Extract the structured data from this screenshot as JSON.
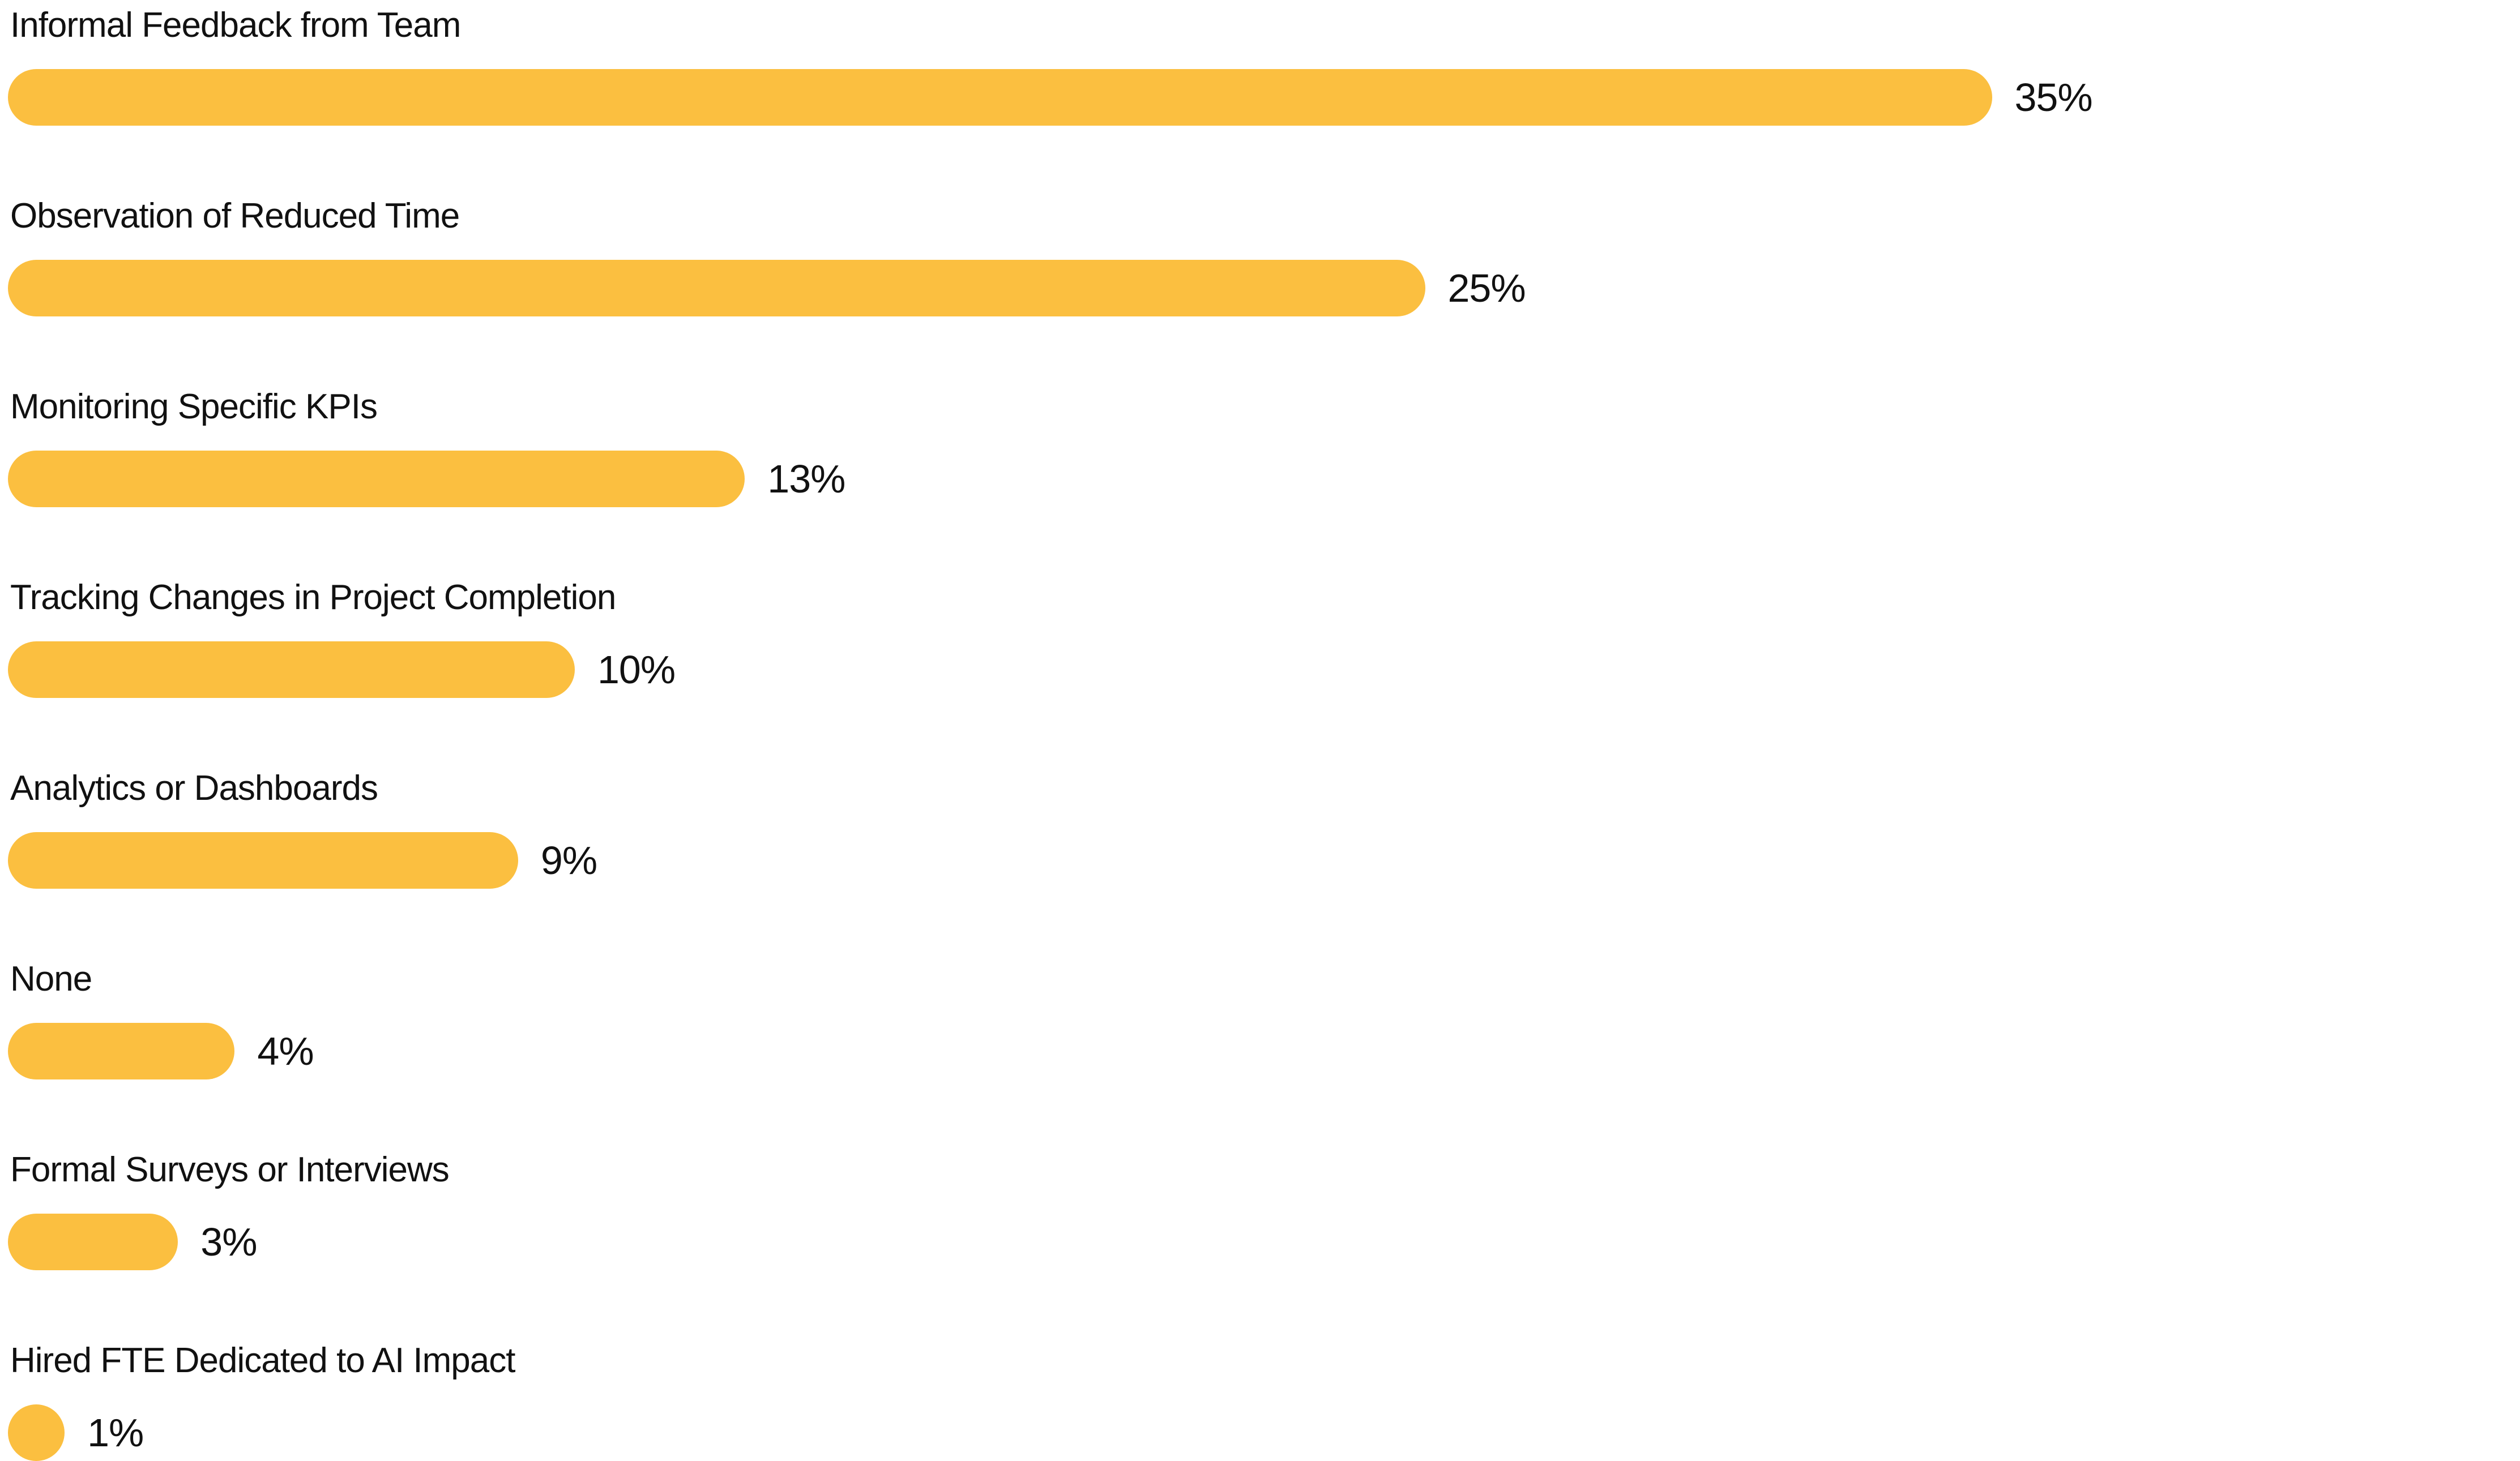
{
  "chart_data": {
    "type": "bar",
    "orientation": "horizontal",
    "categories": [
      "Informal Feedback from Team",
      "Observation of Reduced Time",
      "Monitoring Specific KPIs",
      "Tracking Changes in Project Completion",
      "Analytics or Dashboards",
      "None",
      "Formal Surveys or Interviews",
      "Hired FTE Dedicated to AI Impact"
    ],
    "values": [
      35,
      25,
      13,
      10,
      9,
      4,
      3,
      1
    ],
    "value_labels": [
      "35%",
      "25%",
      "13%",
      "10%",
      "9%",
      "4%",
      "3%",
      "1%"
    ],
    "bar_color": "#FBBF40",
    "text_color": "#111111",
    "grid": false
  }
}
